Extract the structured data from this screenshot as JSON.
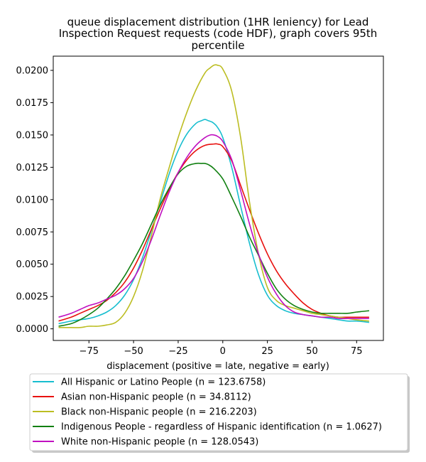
{
  "chart_data": {
    "type": "line",
    "title_lines": [
      "queue displacement distribution (1HR leniency) for Lead",
      "Inspection Request  requests (code HDF), graph covers 95th",
      "percentile"
    ],
    "xlabel": "displacement (positive = late, negative = early)",
    "ylabel": "",
    "xlim": [
      -95,
      90
    ],
    "ylim": [
      -0.0009,
      0.0211
    ],
    "xticks": [
      -75,
      -50,
      -25,
      0,
      25,
      50,
      75
    ],
    "xtick_labels": [
      "−75",
      "−50",
      "−25",
      "0",
      "25",
      "50",
      "75"
    ],
    "yticks": [
      0.0,
      0.0025,
      0.005,
      0.0075,
      0.01,
      0.0125,
      0.015,
      0.0175,
      0.02
    ],
    "ytick_labels": [
      "0.0000",
      "0.0025",
      "0.0050",
      "0.0075",
      "0.0100",
      "0.0125",
      "0.0150",
      "0.0175",
      "0.0200"
    ],
    "grid": false,
    "legend_position": "below plot",
    "series": [
      {
        "name": "All Hispanic or Latino People (n = 123.6758)",
        "color": "#17becf",
        "x": [
          -92,
          -85,
          -80,
          -75,
          -70,
          -65,
          -60,
          -55,
          -50,
          -45,
          -40,
          -35,
          -30,
          -25,
          -20,
          -15,
          -12,
          -10,
          -8,
          -6,
          -5,
          -3,
          0,
          5,
          10,
          15,
          20,
          25,
          30,
          35,
          40,
          45,
          50,
          55,
          60,
          65,
          70,
          75,
          82
        ],
        "y": [
          0.0004,
          0.0006,
          0.0007,
          0.0008,
          0.001,
          0.0013,
          0.0018,
          0.0026,
          0.0038,
          0.0055,
          0.0076,
          0.0098,
          0.012,
          0.0138,
          0.0151,
          0.0159,
          0.0161,
          0.0162,
          0.0161,
          0.016,
          0.0159,
          0.0156,
          0.0148,
          0.0125,
          0.0095,
          0.0066,
          0.0042,
          0.0026,
          0.0018,
          0.0014,
          0.0012,
          0.0011,
          0.001,
          0.0009,
          0.0008,
          0.0007,
          0.0006,
          0.0006,
          0.0005
        ]
      },
      {
        "name": "Asian non-Hispanic people (n = 34.8112)",
        "color": "#e8110f",
        "x": [
          -92,
          -85,
          -80,
          -75,
          -70,
          -65,
          -60,
          -55,
          -50,
          -45,
          -40,
          -35,
          -30,
          -25,
          -20,
          -15,
          -10,
          -5,
          -3,
          0,
          5,
          10,
          15,
          20,
          25,
          30,
          35,
          40,
          45,
          50,
          55,
          60,
          65,
          70,
          75,
          82
        ],
        "y": [
          0.0006,
          0.0009,
          0.0012,
          0.0015,
          0.0018,
          0.0022,
          0.0028,
          0.0036,
          0.0047,
          0.0061,
          0.0077,
          0.0093,
          0.0108,
          0.0121,
          0.0131,
          0.0138,
          0.0142,
          0.0143,
          0.0143,
          0.0141,
          0.013,
          0.0111,
          0.0092,
          0.0074,
          0.0058,
          0.0045,
          0.0035,
          0.0027,
          0.002,
          0.0015,
          0.0012,
          0.001,
          0.0009,
          0.0009,
          0.0009,
          0.0009
        ]
      },
      {
        "name": "Black non-Hispanic people (n = 216.2203)",
        "color": "#bcbd22",
        "x": [
          -92,
          -85,
          -80,
          -75,
          -70,
          -65,
          -60,
          -55,
          -50,
          -45,
          -40,
          -35,
          -30,
          -25,
          -20,
          -15,
          -10,
          -7,
          -5,
          -3,
          0,
          5,
          10,
          15,
          20,
          25,
          30,
          35,
          40,
          45,
          50,
          55,
          60,
          65,
          70,
          75,
          82
        ],
        "y": [
          0.0001,
          0.0001,
          0.0001,
          0.0002,
          0.0002,
          0.0003,
          0.0005,
          0.0012,
          0.0025,
          0.0045,
          0.0072,
          0.0101,
          0.0125,
          0.0148,
          0.0168,
          0.0185,
          0.0198,
          0.0202,
          0.0204,
          0.0204,
          0.0201,
          0.0184,
          0.0148,
          0.0098,
          0.0058,
          0.0032,
          0.0022,
          0.0018,
          0.0016,
          0.0014,
          0.0012,
          0.0011,
          0.001,
          0.0009,
          0.0008,
          0.0007,
          0.0006
        ]
      },
      {
        "name": "Indigenous People - regardless of Hispanic identification (n = 1.0627)",
        "color": "#118011",
        "x": [
          -92,
          -85,
          -80,
          -75,
          -70,
          -65,
          -60,
          -55,
          -50,
          -45,
          -40,
          -35,
          -30,
          -25,
          -20,
          -15,
          -12,
          -10,
          -8,
          -5,
          0,
          5,
          10,
          15,
          20,
          25,
          30,
          35,
          40,
          45,
          50,
          55,
          60,
          65,
          70,
          75,
          82
        ],
        "y": [
          0.0002,
          0.0004,
          0.0007,
          0.0011,
          0.0016,
          0.0023,
          0.0031,
          0.0041,
          0.0053,
          0.0066,
          0.0081,
          0.0096,
          0.0109,
          0.012,
          0.0126,
          0.0128,
          0.0128,
          0.0128,
          0.0127,
          0.0124,
          0.0116,
          0.0102,
          0.0087,
          0.0071,
          0.0057,
          0.0043,
          0.0031,
          0.0023,
          0.0018,
          0.0015,
          0.0013,
          0.0012,
          0.0012,
          0.0012,
          0.0012,
          0.0013,
          0.0014
        ]
      },
      {
        "name": "White non-Hispanic people (n = 128.0543)",
        "color": "#c010c0",
        "x": [
          -92,
          -85,
          -80,
          -75,
          -70,
          -65,
          -60,
          -55,
          -50,
          -45,
          -40,
          -35,
          -30,
          -25,
          -20,
          -15,
          -10,
          -7,
          -5,
          -3,
          0,
          5,
          10,
          15,
          20,
          25,
          30,
          35,
          40,
          45,
          50,
          55,
          60,
          65,
          70,
          75,
          82
        ],
        "y": [
          0.0009,
          0.0012,
          0.0015,
          0.0018,
          0.002,
          0.0023,
          0.0026,
          0.0031,
          0.0039,
          0.0052,
          0.0069,
          0.0088,
          0.0106,
          0.0121,
          0.0133,
          0.0142,
          0.0148,
          0.015,
          0.015,
          0.0149,
          0.0145,
          0.0131,
          0.0107,
          0.0081,
          0.0058,
          0.004,
          0.0027,
          0.0018,
          0.0013,
          0.0011,
          0.001,
          0.0009,
          0.0009,
          0.0008,
          0.0008,
          0.0008,
          0.0008
        ]
      }
    ]
  }
}
